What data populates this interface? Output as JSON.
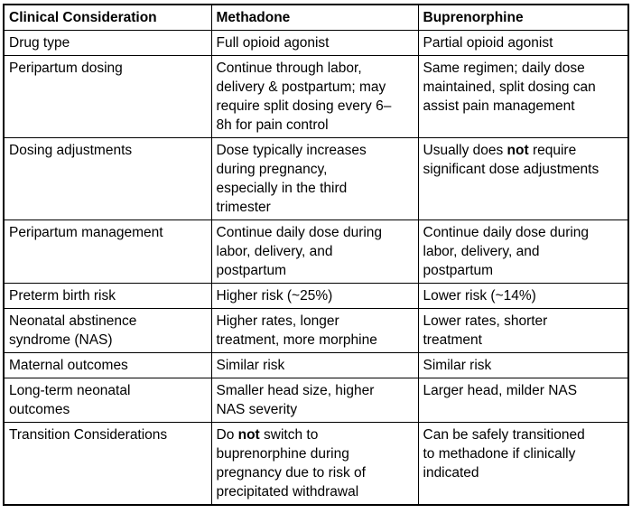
{
  "table": {
    "headers": [
      "Clinical Consideration",
      "Methadone",
      "Buprenorphine"
    ],
    "rows": [
      {
        "consideration": [
          {
            "t": "Drug type"
          }
        ],
        "methadone": [
          {
            "t": "Full opioid agonist"
          }
        ],
        "buprenorphine": [
          {
            "t": "Partial opioid agonist"
          }
        ]
      },
      {
        "consideration": [
          {
            "t": "Peripartum dosing"
          }
        ],
        "methadone": [
          {
            "t": "Continue through labor,\ndelivery & postpartum; may\nrequire split dosing every 6–\n8h for pain control"
          }
        ],
        "buprenorphine": [
          {
            "t": "Same regimen; daily dose\nmaintained, split dosing can\nassist pain management"
          }
        ]
      },
      {
        "consideration": [
          {
            "t": "Dosing adjustments"
          }
        ],
        "methadone": [
          {
            "t": "Dose typically increases\nduring pregnancy,\nespecially in the third\ntrimester"
          }
        ],
        "buprenorphine": [
          {
            "t": "Usually does "
          },
          {
            "t": "not",
            "b": true
          },
          {
            "t": " require\nsignificant dose adjustments"
          }
        ]
      },
      {
        "consideration": [
          {
            "t": "Peripartum management"
          }
        ],
        "methadone": [
          {
            "t": "Continue daily dose during\nlabor, delivery, and\npostpartum"
          }
        ],
        "buprenorphine": [
          {
            "t": "Continue daily dose during\nlabor, delivery, and\npostpartum"
          }
        ]
      },
      {
        "consideration": [
          {
            "t": "Preterm birth risk"
          }
        ],
        "methadone": [
          {
            "t": "Higher risk (~25%)"
          }
        ],
        "buprenorphine": [
          {
            "t": "Lower risk (~14%)"
          }
        ]
      },
      {
        "consideration": [
          {
            "t": "Neonatal abstinence\nsyndrome (NAS)"
          }
        ],
        "methadone": [
          {
            "t": "Higher rates, longer\ntreatment, more morphine"
          }
        ],
        "buprenorphine": [
          {
            "t": "Lower rates, shorter\ntreatment"
          }
        ]
      },
      {
        "consideration": [
          {
            "t": "Maternal outcomes"
          }
        ],
        "methadone": [
          {
            "t": "Similar risk"
          }
        ],
        "buprenorphine": [
          {
            "t": "Similar risk"
          }
        ]
      },
      {
        "consideration": [
          {
            "t": "Long-term neonatal\noutcomes"
          }
        ],
        "methadone": [
          {
            "t": "Smaller head size, higher\nNAS severity"
          }
        ],
        "buprenorphine": [
          {
            "t": "Larger head, milder NAS"
          }
        ]
      },
      {
        "consideration": [
          {
            "t": "Transition Considerations"
          }
        ],
        "methadone": [
          {
            "t": "Do "
          },
          {
            "t": "not",
            "b": true
          },
          {
            "t": " switch to\nbuprenorphine during\npregnancy due to risk of\nprecipitated withdrawal"
          }
        ],
        "buprenorphine": [
          {
            "t": "Can be safely transitioned\nto methadone if clinically\nindicated"
          }
        ]
      }
    ]
  },
  "colors": {
    "border": "#000000",
    "text": "#000000",
    "background": "#ffffff"
  }
}
